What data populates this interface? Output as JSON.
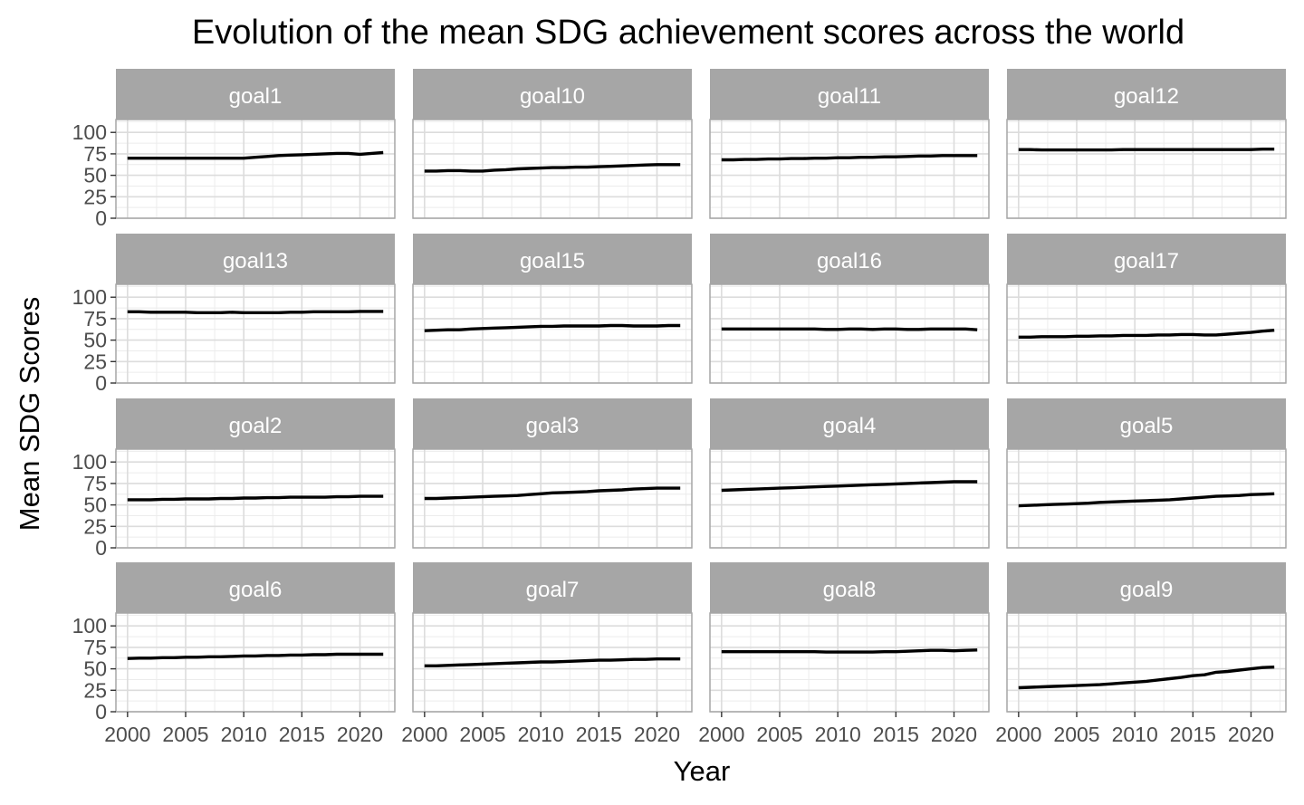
{
  "chart_data": {
    "type": "line",
    "title": "Evolution of the mean SDG achievement scores across the world",
    "xlabel": "Year",
    "ylabel": "Mean SDG Scores",
    "x": [
      2000,
      2001,
      2002,
      2003,
      2004,
      2005,
      2006,
      2007,
      2008,
      2009,
      2010,
      2011,
      2012,
      2013,
      2014,
      2015,
      2016,
      2017,
      2018,
      2019,
      2020,
      2021,
      2022
    ],
    "xlim": [
      1999,
      2023
    ],
    "ylim": [
      0,
      100
    ],
    "x_ticks": [
      "2000",
      "2005",
      "2010",
      "2015",
      "2020"
    ],
    "x_tick_values": [
      2000,
      2005,
      2010,
      2015,
      2020
    ],
    "y_ticks": [
      "0",
      "25",
      "50",
      "75",
      "100"
    ],
    "y_tick_values": [
      0,
      25,
      50,
      75,
      100
    ],
    "grid": true,
    "facets": [
      {
        "name": "goal1",
        "values": [
          70,
          70,
          70,
          70,
          70,
          70,
          70,
          70,
          70,
          70,
          70,
          71,
          72,
          73,
          73.5,
          74,
          74.5,
          75,
          75.5,
          75.5,
          74.5,
          75.5,
          76.5
        ]
      },
      {
        "name": "goal10",
        "values": [
          55,
          55,
          55.5,
          55.5,
          55,
          55,
          56,
          56.5,
          57.5,
          58,
          58.5,
          59,
          59,
          59.5,
          59.5,
          60,
          60.5,
          61,
          61.5,
          62,
          62.5,
          62.5,
          62.5
        ]
      },
      {
        "name": "goal11",
        "values": [
          68,
          68,
          68.5,
          68.5,
          69,
          69,
          69.5,
          69.5,
          70,
          70,
          70.5,
          70.5,
          71,
          71,
          71.5,
          71.5,
          72,
          72.5,
          72.5,
          73,
          73,
          73,
          73
        ]
      },
      {
        "name": "goal12",
        "values": [
          80,
          80,
          79.5,
          79.5,
          79.5,
          79.5,
          79.5,
          79.5,
          79.5,
          80,
          80,
          80,
          80,
          80,
          80,
          80,
          80,
          80,
          80,
          80,
          80,
          80.5,
          80.5
        ]
      },
      {
        "name": "goal13",
        "values": [
          83,
          83,
          82.5,
          82.5,
          82.5,
          82.5,
          82,
          82,
          82,
          82.5,
          82,
          82,
          82,
          82,
          82.5,
          82.5,
          83,
          83,
          83,
          83,
          83.5,
          83.5,
          83.5
        ]
      },
      {
        "name": "goal15",
        "values": [
          61,
          61.5,
          62,
          62,
          63,
          63.5,
          64,
          64.5,
          65,
          65.5,
          66,
          66,
          66.5,
          66.5,
          66.5,
          66.5,
          67,
          67,
          66.5,
          66.5,
          66.5,
          67,
          67
        ]
      },
      {
        "name": "goal16",
        "values": [
          63,
          63,
          63,
          63,
          63,
          63,
          63,
          63,
          63,
          62.5,
          62.5,
          63,
          63,
          62.5,
          63,
          63,
          62.5,
          62.5,
          63,
          63,
          63,
          63,
          62
        ]
      },
      {
        "name": "goal17",
        "values": [
          53.5,
          53.5,
          54,
          54,
          54,
          54.5,
          54.5,
          55,
          55,
          55.5,
          55.5,
          55.5,
          56,
          56,
          56.5,
          56.5,
          56,
          56,
          57,
          58,
          59,
          60.5,
          61.5
        ]
      },
      {
        "name": "goal2",
        "values": [
          56,
          56,
          56,
          56.5,
          56.5,
          57,
          57,
          57,
          57.5,
          57.5,
          58,
          58,
          58.5,
          58.5,
          59,
          59,
          59,
          59,
          59.5,
          59.5,
          60,
          60,
          60
        ]
      },
      {
        "name": "goal3",
        "values": [
          57.5,
          57.5,
          58,
          58.5,
          59,
          59.5,
          60,
          60.5,
          61,
          62,
          63,
          64,
          64.5,
          65,
          65.5,
          66.5,
          67,
          67.5,
          68.5,
          69,
          69.5,
          69.5,
          69.5
        ]
      },
      {
        "name": "goal4",
        "values": [
          67,
          67.5,
          68,
          68.5,
          69,
          69.5,
          70,
          70.5,
          71,
          71.5,
          72,
          72.5,
          73,
          73.5,
          74,
          74.5,
          75,
          75.5,
          76,
          76.5,
          77,
          77,
          77
        ]
      },
      {
        "name": "goal5",
        "values": [
          49,
          49.5,
          50,
          50.5,
          51,
          51.5,
          52,
          53,
          53.5,
          54,
          54.5,
          55,
          55.5,
          56,
          57,
          58,
          59,
          60,
          60.5,
          61,
          62,
          62.5,
          63
        ]
      },
      {
        "name": "goal6",
        "values": [
          62,
          62.5,
          62.5,
          63,
          63,
          63.5,
          63.5,
          64,
          64,
          64.5,
          65,
          65,
          65.5,
          65.5,
          66,
          66,
          66.5,
          66.5,
          67,
          67,
          67,
          67,
          67
        ]
      },
      {
        "name": "goal7",
        "values": [
          53.5,
          53.5,
          54,
          54.5,
          55,
          55.5,
          56,
          56.5,
          57,
          57.5,
          58,
          58,
          58.5,
          59,
          59.5,
          60,
          60,
          60.5,
          61,
          61,
          61.5,
          61.5,
          61.5
        ]
      },
      {
        "name": "goal8",
        "values": [
          70,
          70,
          70,
          70,
          70,
          70,
          70,
          70,
          70,
          69.5,
          69.5,
          69.5,
          69.5,
          69.5,
          70,
          70,
          70.5,
          71,
          71.5,
          71.5,
          71,
          71.5,
          72
        ]
      },
      {
        "name": "goal9",
        "values": [
          28,
          28.5,
          29,
          29.5,
          30,
          30.5,
          31,
          31.5,
          32.5,
          33.5,
          34.5,
          35.5,
          37,
          38.5,
          40,
          42,
          43,
          46,
          47,
          48.5,
          50,
          51.5,
          52
        ]
      }
    ]
  }
}
